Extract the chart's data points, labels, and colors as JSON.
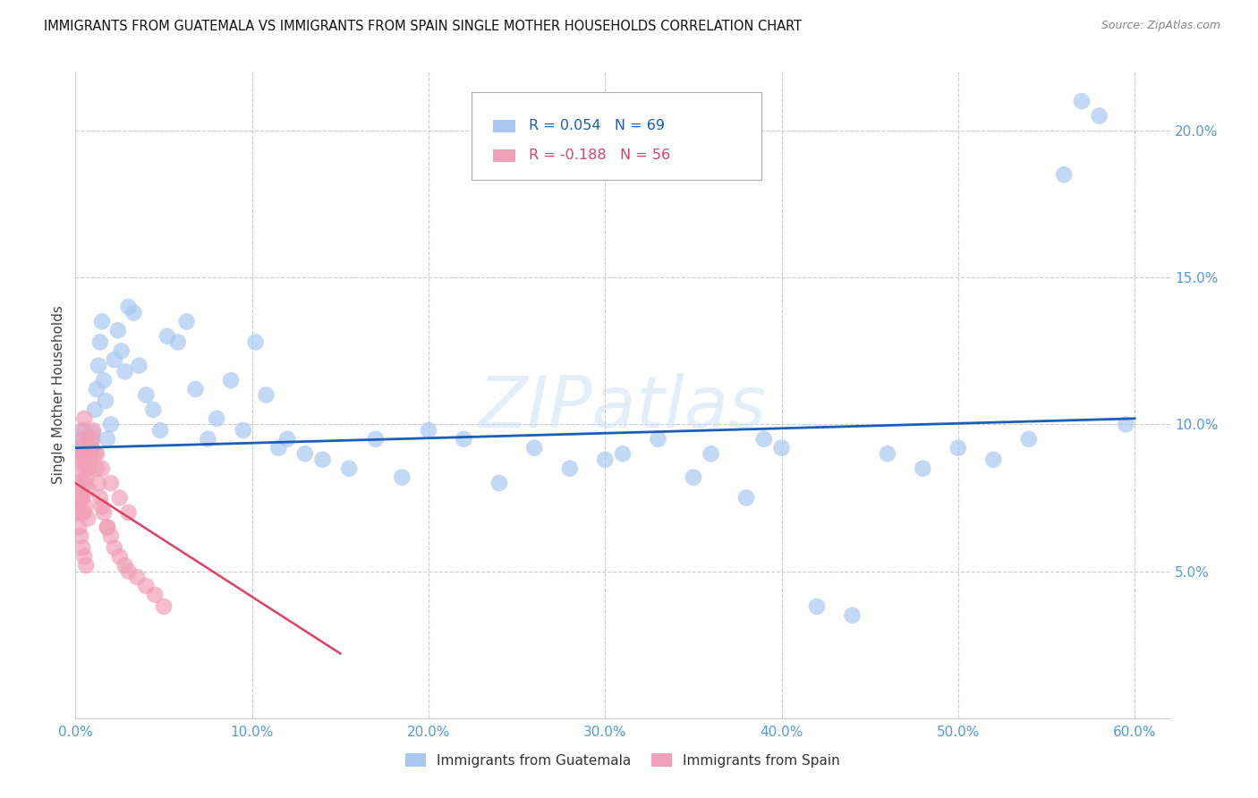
{
  "title": "IMMIGRANTS FROM GUATEMALA VS IMMIGRANTS FROM SPAIN SINGLE MOTHER HOUSEHOLDS CORRELATION CHART",
  "source": "Source: ZipAtlas.com",
  "ylabel": "Single Mother Households",
  "x_tick_labels": [
    "0.0%",
    "10.0%",
    "20.0%",
    "30.0%",
    "40.0%",
    "50.0%",
    "60.0%"
  ],
  "x_tick_values": [
    0,
    10,
    20,
    30,
    40,
    50,
    60
  ],
  "y_tick_labels": [
    "5.0%",
    "10.0%",
    "15.0%",
    "20.0%"
  ],
  "y_tick_values": [
    5,
    10,
    15,
    20
  ],
  "xlim": [
    0,
    62
  ],
  "ylim": [
    0,
    22
  ],
  "r1": 0.054,
  "n1": 69,
  "r2": -0.188,
  "n2": 56,
  "blue_color": "#a8c8f0",
  "pink_color": "#f0a0b8",
  "trend_blue": "#1a5eb8",
  "trend_pink": "#e04060",
  "background_color": "#ffffff",
  "grid_color": "#cccccc",
  "axis_label_color": "#5599dd",
  "title_color": "#111111",
  "legend1_label": "Immigrants from Guatemala",
  "legend2_label": "Immigrants from Spain",
  "watermark_text": "ZIPatlas",
  "guat_x": [
    0.2,
    0.3,
    0.4,
    0.5,
    0.6,
    0.7,
    0.8,
    0.9,
    1.0,
    1.1,
    1.2,
    1.3,
    1.4,
    1.5,
    1.6,
    1.7,
    1.8,
    2.0,
    2.2,
    2.4,
    2.6,
    2.8,
    3.0,
    3.3,
    3.6,
    4.0,
    4.4,
    4.8,
    5.2,
    5.8,
    6.3,
    6.8,
    7.5,
    8.0,
    8.8,
    9.5,
    10.2,
    10.8,
    11.5,
    12.0,
    13.0,
    14.0,
    15.5,
    17.0,
    18.5,
    20.0,
    22.0,
    24.0,
    26.0,
    28.0,
    30.0,
    31.0,
    33.0,
    35.0,
    36.0,
    38.0,
    39.0,
    40.0,
    42.0,
    44.0,
    46.0,
    48.0,
    50.0,
    52.0,
    54.0,
    56.0,
    57.0,
    58.0,
    59.5
  ],
  "guat_y": [
    9.5,
    9.2,
    9.8,
    9.0,
    9.3,
    9.6,
    9.1,
    9.4,
    9.7,
    10.5,
    11.2,
    12.0,
    12.8,
    13.5,
    11.5,
    10.8,
    9.5,
    10.0,
    12.2,
    13.2,
    12.5,
    11.8,
    14.0,
    13.8,
    12.0,
    11.0,
    10.5,
    9.8,
    13.0,
    12.8,
    13.5,
    11.2,
    9.5,
    10.2,
    11.5,
    9.8,
    12.8,
    11.0,
    9.2,
    9.5,
    9.0,
    8.8,
    8.5,
    9.5,
    8.2,
    9.8,
    9.5,
    8.0,
    9.2,
    8.5,
    8.8,
    9.0,
    9.5,
    8.2,
    9.0,
    7.5,
    9.5,
    9.2,
    3.8,
    3.5,
    9.0,
    8.5,
    9.2,
    8.8,
    9.5,
    18.5,
    21.0,
    20.5,
    10.0
  ],
  "spain_x": [
    0.05,
    0.1,
    0.15,
    0.2,
    0.25,
    0.3,
    0.35,
    0.4,
    0.45,
    0.5,
    0.55,
    0.6,
    0.65,
    0.7,
    0.75,
    0.8,
    0.85,
    0.9,
    0.95,
    1.0,
    1.1,
    1.2,
    1.3,
    1.4,
    1.5,
    1.6,
    1.8,
    2.0,
    2.2,
    2.5,
    2.8,
    3.0,
    3.5,
    4.0,
    4.5,
    5.0,
    0.2,
    0.3,
    0.4,
    0.5,
    0.6,
    0.7,
    0.3,
    0.4,
    0.5,
    0.6,
    0.2,
    0.35,
    0.45,
    1.2,
    1.5,
    2.0,
    2.5,
    3.0,
    1.8,
    0.8
  ],
  "spain_y": [
    7.0,
    7.5,
    8.0,
    8.5,
    9.0,
    9.2,
    8.8,
    9.5,
    9.8,
    10.2,
    8.5,
    9.0,
    8.2,
    7.8,
    8.5,
    9.0,
    8.8,
    9.2,
    9.5,
    9.8,
    9.0,
    8.5,
    8.0,
    7.5,
    7.2,
    7.0,
    6.5,
    6.2,
    5.8,
    5.5,
    5.2,
    5.0,
    4.8,
    4.5,
    4.2,
    3.8,
    6.5,
    7.0,
    7.5,
    8.0,
    7.2,
    6.8,
    6.2,
    5.8,
    5.5,
    5.2,
    8.0,
    7.5,
    7.0,
    9.0,
    8.5,
    8.0,
    7.5,
    7.0,
    6.5,
    9.5
  ],
  "guat_trend_x0": 0,
  "guat_trend_x1": 60,
  "guat_trend_y0": 9.2,
  "guat_trend_y1": 10.2,
  "spain_trend_x0": 0,
  "spain_trend_x1": 15,
  "spain_trend_y0": 8.0,
  "spain_trend_y1": 2.2
}
